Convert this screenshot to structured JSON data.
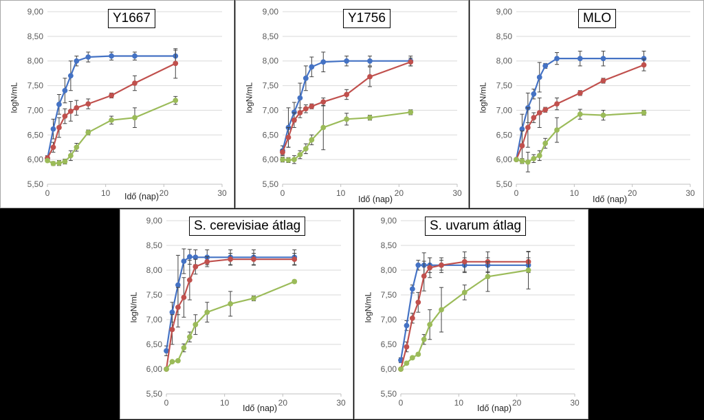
{
  "colors": {
    "blue": "#4472c4",
    "red": "#c0504d",
    "green": "#9bbb59",
    "grid": "#d9d9d9",
    "axis": "#bfbfbf",
    "err": "#404040"
  },
  "chart_data": [
    {
      "type": "line",
      "title": "Y1667",
      "xlabel": "Idő (nap)",
      "ylabel": "logN/mL",
      "xlim": [
        0,
        30
      ],
      "ylim": [
        5.5,
        9.0
      ],
      "xticks": [
        "0",
        "10",
        "20",
        "30"
      ],
      "yticks": [
        "5,50",
        "6,00",
        "6,50",
        "7,00",
        "7,50",
        "8,00",
        "8,50",
        "9,00"
      ],
      "series": [
        {
          "name": "blue",
          "color": "#4472c4",
          "x": [
            0,
            1,
            2,
            3,
            4,
            5,
            7,
            11,
            15,
            22
          ],
          "y": [
            6.02,
            6.62,
            7.12,
            7.4,
            7.7,
            8.0,
            8.08,
            8.1,
            8.1,
            8.1
          ],
          "err": [
            0.05,
            0.2,
            0.2,
            0.25,
            0.3,
            0.1,
            0.1,
            0.08,
            0.08,
            0.12
          ]
        },
        {
          "name": "red",
          "color": "#c0504d",
          "x": [
            0,
            1,
            2,
            3,
            4,
            5,
            7,
            11,
            15,
            22
          ],
          "y": [
            6.03,
            6.25,
            6.65,
            6.88,
            6.98,
            7.05,
            7.13,
            7.3,
            7.55,
            7.95
          ],
          "err": [
            0.05,
            0.1,
            0.2,
            0.15,
            0.2,
            0.15,
            0.1,
            0.05,
            0.15,
            0.3
          ]
        },
        {
          "name": "green",
          "color": "#9bbb59",
          "x": [
            0,
            1,
            2,
            3,
            4,
            5,
            7,
            11,
            15,
            22
          ],
          "y": [
            5.98,
            5.92,
            5.93,
            5.96,
            6.08,
            6.25,
            6.55,
            6.8,
            6.85,
            7.2
          ],
          "err": [
            0.03,
            0.04,
            0.05,
            0.05,
            0.1,
            0.08,
            0.05,
            0.08,
            0.2,
            0.08
          ]
        }
      ]
    },
    {
      "type": "line",
      "title": "Y1756",
      "xlabel": "Idő (nap)",
      "ylabel": "logN/mL",
      "xlim": [
        0,
        30
      ],
      "ylim": [
        5.5,
        9.0
      ],
      "xticks": [
        "0",
        "10",
        "20",
        "30"
      ],
      "yticks": [
        "5,50",
        "6,00",
        "6,50",
        "7,00",
        "7,50",
        "8,00",
        "8,50",
        "9,00"
      ],
      "series": [
        {
          "name": "blue",
          "color": "#4472c4",
          "x": [
            0,
            1,
            2,
            3,
            4,
            5,
            7,
            11,
            15,
            22
          ],
          "y": [
            6.18,
            6.65,
            6.96,
            7.25,
            7.65,
            7.88,
            7.98,
            8.0,
            8.0,
            8.0
          ],
          "err": [
            0.1,
            0.4,
            0.2,
            0.3,
            0.25,
            0.2,
            0.2,
            0.1,
            0.1,
            0.1
          ]
        },
        {
          "name": "red",
          "color": "#c0504d",
          "x": [
            0,
            1,
            2,
            3,
            4,
            5,
            7,
            11,
            15,
            22
          ],
          "y": [
            6.15,
            6.45,
            6.8,
            6.95,
            7.03,
            7.08,
            7.17,
            7.32,
            7.68,
            7.98
          ],
          "err": [
            0.05,
            0.2,
            0.15,
            0.1,
            0.08,
            0.05,
            0.08,
            0.1,
            0.2,
            0.08
          ]
        },
        {
          "name": "green",
          "color": "#9bbb59",
          "x": [
            0,
            1,
            2,
            3,
            4,
            5,
            7,
            11,
            15,
            22
          ],
          "y": [
            6.0,
            5.99,
            6.0,
            6.1,
            6.22,
            6.4,
            6.65,
            6.82,
            6.85,
            6.96
          ],
          "err": [
            0.05,
            0.05,
            0.08,
            0.08,
            0.1,
            0.1,
            0.45,
            0.12,
            0.05,
            0.05
          ]
        }
      ]
    },
    {
      "type": "line",
      "title": "MLO",
      "xlabel": "Idő (nap)",
      "ylabel": "logN/mL",
      "xlim": [
        0,
        30
      ],
      "ylim": [
        5.5,
        9.0
      ],
      "xticks": [
        "0",
        "10",
        "20",
        "30"
      ],
      "yticks": [
        "5,50",
        "6,00",
        "6,50",
        "7,00",
        "7,50",
        "8,00",
        "8,50",
        "9,00"
      ],
      "series": [
        {
          "name": "blue",
          "color": "#4472c4",
          "x": [
            0,
            1,
            2,
            3,
            4,
            5,
            7,
            11,
            15,
            22
          ],
          "y": [
            6.0,
            6.62,
            7.05,
            7.33,
            7.67,
            7.9,
            8.05,
            8.05,
            8.05,
            8.05
          ],
          "err": [
            0.03,
            0.3,
            0.3,
            0.1,
            0.3,
            0.05,
            0.12,
            0.15,
            0.15,
            0.15
          ]
        },
        {
          "name": "red",
          "color": "#c0504d",
          "x": [
            0,
            1,
            2,
            3,
            4,
            5,
            7,
            11,
            15,
            22
          ],
          "y": [
            6.0,
            6.28,
            6.65,
            6.85,
            6.95,
            7.01,
            7.13,
            7.35,
            7.6,
            7.92
          ],
          "err": [
            0.03,
            0.3,
            0.4,
            0.1,
            0.3,
            0.05,
            0.12,
            0.05,
            0.05,
            0.12
          ]
        },
        {
          "name": "green",
          "color": "#9bbb59",
          "x": [
            0,
            1,
            2,
            3,
            4,
            5,
            7,
            11,
            15,
            22
          ],
          "y": [
            6.0,
            5.97,
            5.95,
            6.02,
            6.08,
            6.33,
            6.6,
            6.92,
            6.9,
            6.95
          ],
          "err": [
            0.03,
            0.05,
            0.2,
            0.08,
            0.1,
            0.1,
            0.25,
            0.1,
            0.1,
            0.05
          ]
        }
      ]
    },
    {
      "type": "line",
      "title": "S. cerevisiae átlag",
      "xlabel": "Idő (nap)",
      "ylabel": "logN/mL",
      "xlim": [
        0,
        30
      ],
      "ylim": [
        5.5,
        9.0
      ],
      "xticks": [
        "0",
        "10",
        "20",
        "30"
      ],
      "yticks": [
        "5,50",
        "6,00",
        "6,50",
        "7,00",
        "7,50",
        "8,00",
        "8,50",
        "9,00"
      ],
      "series": [
        {
          "name": "blue",
          "color": "#4472c4",
          "x": [
            0,
            1,
            2,
            3,
            4,
            5,
            7,
            11,
            15,
            22
          ],
          "y": [
            6.37,
            7.15,
            7.7,
            8.18,
            8.27,
            8.26,
            8.26,
            8.26,
            8.26,
            8.26
          ],
          "err": [
            0.1,
            0.2,
            0.6,
            0.25,
            0.15,
            0.15,
            0.15,
            0.15,
            0.15,
            0.15
          ]
        },
        {
          "name": "red",
          "color": "#c0504d",
          "x": [
            0,
            1,
            2,
            3,
            4,
            5,
            7,
            11,
            15,
            22
          ],
          "y": [
            6.0,
            6.8,
            7.25,
            7.45,
            7.8,
            8.07,
            8.17,
            8.22,
            8.22,
            8.22
          ],
          "err": [
            0.03,
            0.3,
            0.4,
            0.4,
            0.4,
            0.15,
            0.1,
            0.12,
            0.12,
            0.12
          ]
        },
        {
          "name": "green",
          "color": "#9bbb59",
          "x": [
            0,
            1,
            2,
            3,
            4,
            5,
            7,
            11,
            15,
            22
          ],
          "y": [
            6.0,
            6.15,
            6.17,
            6.43,
            6.65,
            6.9,
            7.15,
            7.32,
            7.43,
            7.77
          ],
          "err": [
            0.03,
            0.03,
            0.03,
            0.08,
            0.1,
            0.2,
            0.2,
            0.25,
            0.05,
            0.03
          ]
        }
      ]
    },
    {
      "type": "line",
      "title": "S. uvarum átlag",
      "xlabel": "Idő (nap)",
      "ylabel": "logN/mL",
      "xlim": [
        0,
        30
      ],
      "ylim": [
        5.5,
        9.0
      ],
      "xticks": [
        "0",
        "10",
        "20",
        "30"
      ],
      "yticks": [
        "5,50",
        "6,00",
        "6,50",
        "7,00",
        "7,50",
        "8,00",
        "8,50",
        "9,00"
      ],
      "series": [
        {
          "name": "blue",
          "color": "#4472c4",
          "x": [
            0,
            1,
            2,
            3,
            4,
            5,
            7,
            11,
            15,
            22
          ],
          "y": [
            6.18,
            6.88,
            7.62,
            8.1,
            8.1,
            8.1,
            8.1,
            8.1,
            8.1,
            8.1
          ],
          "err": [
            0.05,
            0.1,
            0.08,
            0.1,
            0.25,
            0.15,
            0.15,
            0.15,
            0.15,
            0.15
          ]
        },
        {
          "name": "red",
          "color": "#c0504d",
          "x": [
            0,
            1,
            2,
            3,
            4,
            5,
            7,
            11,
            15,
            22
          ],
          "y": [
            6.0,
            6.45,
            7.03,
            7.35,
            7.88,
            8.05,
            8.1,
            8.17,
            8.17,
            8.17
          ],
          "err": [
            0.03,
            0.1,
            0.1,
            0.2,
            0.3,
            0.2,
            0.1,
            0.2,
            0.2,
            0.2
          ]
        },
        {
          "name": "green",
          "color": "#9bbb59",
          "x": [
            0,
            1,
            2,
            3,
            4,
            5,
            7,
            11,
            15,
            22
          ],
          "y": [
            6.0,
            6.12,
            6.23,
            6.3,
            6.6,
            6.9,
            7.2,
            7.55,
            7.87,
            8.0
          ],
          "err": [
            0.03,
            0.03,
            0.03,
            0.03,
            0.1,
            0.3,
            0.45,
            0.15,
            0.3,
            0.38
          ]
        }
      ]
    }
  ]
}
